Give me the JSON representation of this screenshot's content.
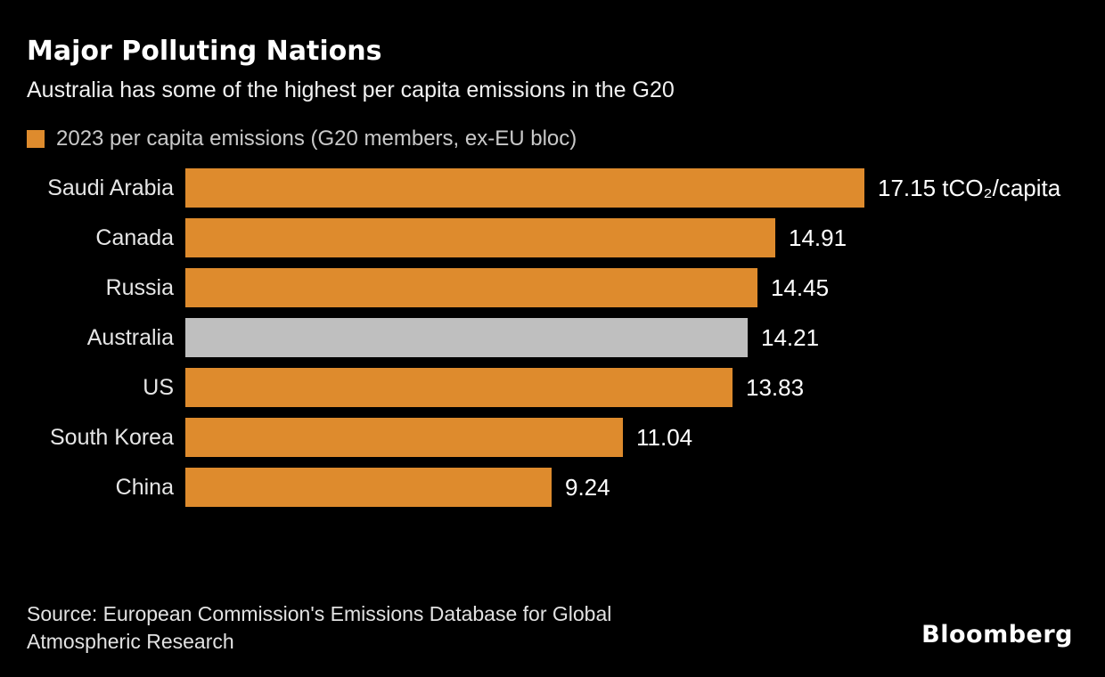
{
  "header": {
    "title": "Major Polluting Nations",
    "subtitle": "Australia has some of the highest per capita emissions in the G20"
  },
  "legend": {
    "label": "2023 per capita emissions (G20 members, ex-EU bloc)",
    "swatch_color": "#de8b2d"
  },
  "chart_data": {
    "type": "bar",
    "orientation": "horizontal",
    "title": "Major Polluting Nations",
    "categories": [
      "Saudi Arabia",
      "Canada",
      "Russia",
      "Australia",
      "US",
      "South Korea",
      "China"
    ],
    "values": [
      17.15,
      14.91,
      14.45,
      14.21,
      13.83,
      11.04,
      9.24
    ],
    "value_labels": [
      "17.15 tCO₂/capita",
      "14.91",
      "14.45",
      "14.21",
      "13.83",
      "11.04",
      "9.24"
    ],
    "unit": "tCO₂/capita",
    "highlighted_category": "Australia",
    "bar_color": "#de8b2d",
    "highlight_color": "#bfbfbf",
    "xlim": [
      0,
      17.15
    ],
    "grid": false,
    "legend_position": "top-left",
    "background": "#000000"
  },
  "footer": {
    "source_line1": "Source: European Commission's Emissions Database for Global",
    "source_line2": "Atmospheric Research",
    "brand": "Bloomberg"
  }
}
